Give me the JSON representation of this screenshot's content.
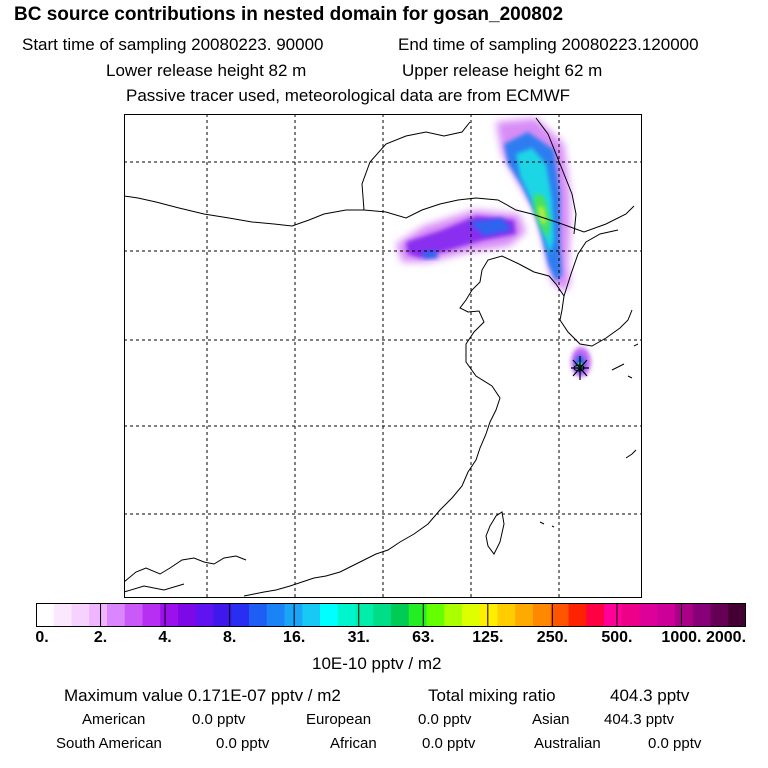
{
  "header": {
    "title": "BC  source contributions in nested domain for gosan_200802",
    "start_label": "Start time of sampling 20080223. 90000",
    "end_label": "End time of sampling 20080223.120000",
    "lower_label": "Lower release height   82 m",
    "upper_label": "Upper release height   62 m",
    "note": "Passive tracer used, meteorological data are from ECMWF"
  },
  "colorbar": {
    "ticks": [
      "0.",
      "2.",
      "4.",
      "8.",
      "16.",
      "31.",
      "63.",
      "125.",
      "250.",
      "500.",
      "1000.",
      "2000."
    ],
    "unit": "10E-10 pptv / m2",
    "colors": [
      "#ffffff",
      "#fbe8ff",
      "#f6d2ff",
      "#efb6ff",
      "#d986ff",
      "#c95af7",
      "#b62ff2",
      "#9b10ec",
      "#7d0ae6",
      "#5f13f0",
      "#3f18ee",
      "#2a2ef2",
      "#1f5ef5",
      "#1a84f7",
      "#1aa5f7",
      "#18c8f5",
      "#00ffff",
      "#00f5cc",
      "#00eeaa",
      "#00dd88",
      "#00cc55",
      "#22ee22",
      "#66ff00",
      "#aaff00",
      "#ddff00",
      "#ffee00",
      "#ffcc00",
      "#ffaa00",
      "#ff8800",
      "#ff5500",
      "#ff2200",
      "#ff0044",
      "#ff0099",
      "#ee0088",
      "#dd0099",
      "#cc0099",
      "#aa0088",
      "#880077",
      "#660055",
      "#440033"
    ]
  },
  "summary": {
    "max_label": "Maximum value  0.171E-07 pptv / m2",
    "total_label": "Total mixing ratio",
    "total_value": "404.3 pptv",
    "regions": [
      {
        "name": "American",
        "value": "0.0 pptv"
      },
      {
        "name": "European",
        "value": "0.0 pptv"
      },
      {
        "name": "Asian",
        "value": "404.3 pptv"
      },
      {
        "name": "South American",
        "value": "0.0 pptv"
      },
      {
        "name": "African",
        "value": "0.0 pptv"
      },
      {
        "name": "Australian",
        "value": "0.0 pptv"
      }
    ]
  }
}
